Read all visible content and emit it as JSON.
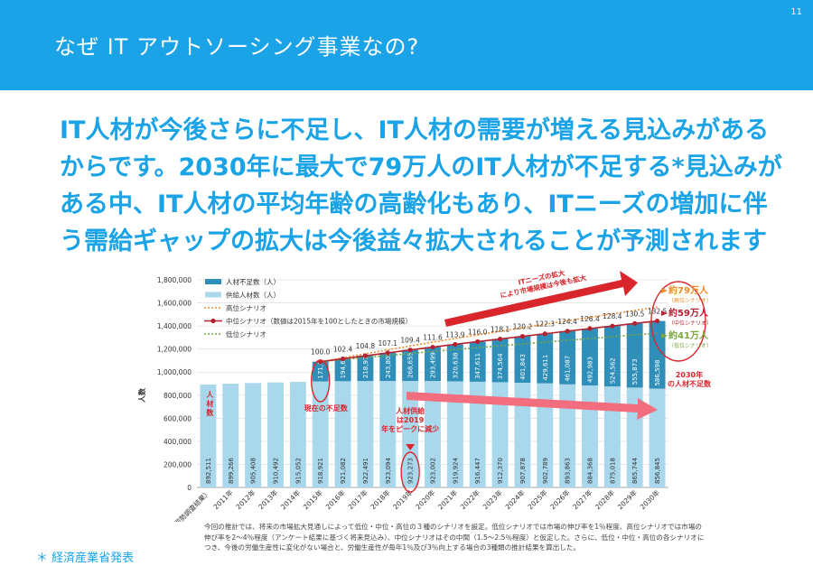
{
  "page": {
    "title": "なぜ IT アウトソーシング事業なの?",
    "page_number": "11",
    "lead": "IT人材が今後さらに不足し、IT人材の需要が増える見込みがあるからです。2030年に最大で79万人のIT人材が不足する*見込みがある中、IT人材の平均年齢の高齢化もあり、ITニーズの増加に伴う需給ギャップの拡大は今後益々拡大されることが予測されます",
    "footnote": "今回の推計では、将来の市場拡大見通しによって低位・中位・高位の３種のシナリオを設定。低位シナリオでは市場の伸び率を1％程度、高位シナリオでは市場の伸び率を2～4％程度（アンケート結果に基づく将来見込み）、中位シナリオはその中間（1.5～2.5％程度）と仮定した。さらに、低位・中位・高位の各シナリオにつき、今後の労働生産性に変化がない場合と、労働生産性が毎年1％及び3％向上する場合の3種類の推計結果を算出した。",
    "source": "＊ 経済産業省発表",
    "colors": {
      "accent": "#1aa3e6",
      "supply": "#a9d8ec",
      "shortage": "#2f8fb8",
      "mid": "#b5222f",
      "high": "#f08a24",
      "low": "#7aa63b",
      "red": "#d9252c",
      "pink": "#f26d7d"
    }
  },
  "chart_data": {
    "type": "bar",
    "stacked": true,
    "categories": [
      "2010年（国勢調査結果）",
      "2011年",
      "2012年",
      "2013年",
      "2014年",
      "2015年",
      "2016年",
      "2017年",
      "2018年",
      "2019年",
      "2020年",
      "2021年",
      "2022年",
      "2023年",
      "2024年",
      "2025年",
      "2026年",
      "2027年",
      "2028年",
      "2029年",
      "2030年"
    ],
    "ylim": [
      0,
      1800000
    ],
    "yticks": [
      "0",
      "200,000",
      "400,000",
      "600,000",
      "800,000",
      "1,000,000",
      "1,200,000",
      "1,400,000",
      "1,600,000",
      "1,800,000"
    ],
    "ylabel": "人数",
    "series": [
      {
        "name": "供給人材数（人）",
        "values": [
          892511,
          899266,
          905408,
          910492,
          915052,
          918921,
          921082,
          922491,
          923094,
          923273,
          923002,
          919924,
          916447,
          912370,
          907878,
          902789,
          893863,
          884368,
          875018,
          865744,
          856845
        ],
        "labels": [
          "892,511",
          "899,266",
          "905,408",
          "910,492",
          "915,052",
          "918,921",
          "921,082",
          "922,491",
          "923,094",
          "923,273",
          "923,002",
          "919,924",
          "916,447",
          "912,370",
          "907,878",
          "902,789",
          "893,863",
          "884,368",
          "875,018",
          "865,744",
          "856,845"
        ]
      },
      {
        "name": "人材不足数（人）",
        "values": [
          null,
          null,
          null,
          null,
          null,
          171000,
          194608,
          218976,
          243805,
          268655,
          293499,
          320638,
          347611,
          374564,
          401843,
          429611,
          461087,
          492983,
          524562,
          555873,
          586598
        ],
        "labels": [
          "",
          "",
          "",
          "",
          "",
          "171,000",
          "194,608",
          "218,976",
          "243,805",
          "268,655",
          "293,499",
          "320,638",
          "347,611",
          "374,564",
          "401,843",
          "429,611",
          "461,087",
          "492,983",
          "524,562",
          "555,873",
          "586,598"
        ]
      }
    ],
    "index_series": {
      "name": "中位シナリオ（数値は2015年を100としたときの市場規模）",
      "values": [
        100.0,
        102.4,
        104.8,
        107.1,
        109.4,
        111.6,
        113.9,
        116.0,
        118.1,
        120.2,
        122.3,
        124.4,
        126.4,
        128.4,
        130.5,
        132.5
      ],
      "labels": [
        "100.0",
        "102.4",
        "104.8",
        "107.1",
        "109.4",
        "111.6",
        "113.9",
        "116.0",
        "118.1",
        "120.2",
        "122.3",
        "124.4",
        "126.4",
        "128.4",
        "130.5",
        "132.5"
      ]
    },
    "legend": [
      "人材不足数（人）",
      "供給人材数（人）",
      "高位シナリオ",
      "中位シナリオ（数値は2015年を100としたときの市場規模）",
      "低位シナリオ"
    ],
    "legend_position": "top-left",
    "annotations": {
      "supply_vertical": "人材数",
      "current_shortage": "現在の不足数",
      "peak": "人材供給は2019年をピークに減少",
      "market_growth": "ITニーズの拡大により市場規模は今後も拡大",
      "high_value": "約79万人",
      "high_note": "（高位シナリオ）",
      "mid_value": "約59万人",
      "mid_note": "（中位シナリオ）",
      "low_value": "約41万人",
      "low_note": "（低位シナリオ）",
      "shortage_2030": "2030年の人材不足数"
    }
  }
}
